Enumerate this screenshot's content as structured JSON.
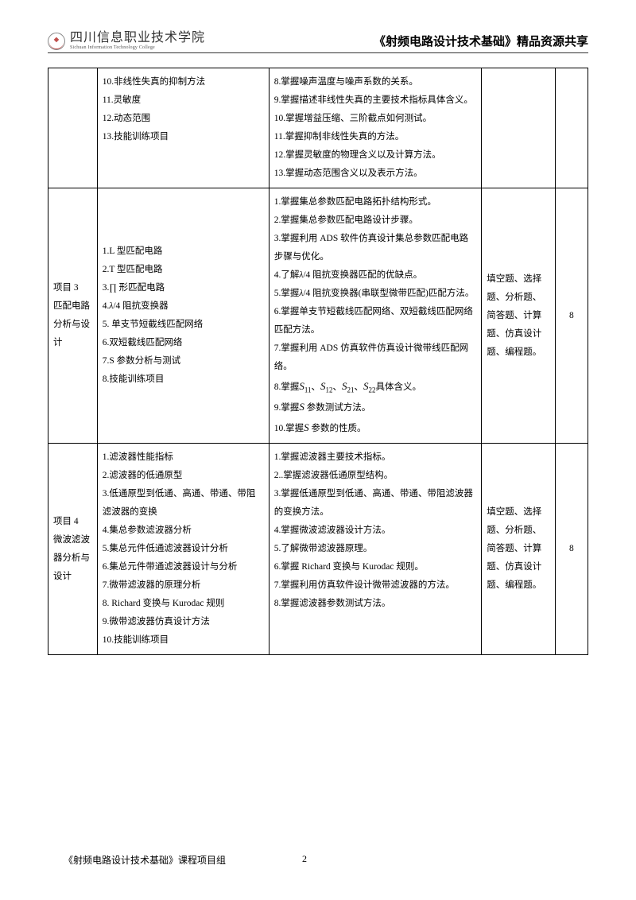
{
  "header": {
    "org_cn": "四川信息职业技术学院",
    "org_en": "Sichuan Information Technology College",
    "title": "《射频电路设计技术基础》精品资源共享"
  },
  "table": {
    "row1": {
      "col2_items": [
        "10.非线性失真的抑制方法",
        "11.灵敏度",
        "12.动态范围",
        "13.技能训练项目"
      ],
      "col3_items": [
        "8.掌握噪声温度与噪声系数的关系。",
        "9.掌握描述非线性失真的主要技术指标具体含义。",
        "10.掌握增益压缩、三阶截点如何测试。",
        "11.掌握抑制非线性失真的方法。",
        "12.掌握灵敏度的物理含义以及计算方法。",
        "13.掌握动态范围含义以及表示方法。"
      ]
    },
    "row2": {
      "col1": "项目 3\n匹配电路分析与设计",
      "col2_items": [
        "1.L 型匹配电路",
        "2.T 型匹配电路",
        "3.∏ 形匹配电路",
        "4.λ/4 阻抗变换器",
        "5. 单支节短截线匹配网络",
        "6.双短截线匹配网络",
        "7.S 参数分析与测试",
        "8.技能训练项目"
      ],
      "col3_items": [
        "1.掌握集总参数匹配电路拓扑结构形式。",
        "2.掌握集总参数匹配电路设计步骤。",
        "3.掌握利用 ADS 软件仿真设计集总参数匹配电路步骤与优化。",
        "4.了解λ/4 阻抗变换器匹配的优缺点。",
        "5.掌握λ/4 阻抗变换器(串联型微带匹配)匹配方法。",
        "6.掌握单支节短截线匹配网络、双短截线匹配网络匹配方法。",
        "7.掌握利用 ADS 仿真软件仿真设计微带线匹配网络。",
        "8.掌握S₁₁、S₁₂、S₂₁、S₂₂具体含义。",
        "9.掌握S 参数测试方法。",
        "10.掌握S 参数的性质。"
      ],
      "col4": "填空题、选择题、分析题、简答题、计算题、仿真设计题、编程题。",
      "col5": "8"
    },
    "row3": {
      "col1": "项目 4\n微波滤波器分析与设计",
      "col2_items": [
        "1.滤波器性能指标",
        "2.滤波器的低通原型",
        "3.低通原型到低通、高通、带通、带阻滤波器的变换",
        "4.集总参数滤波器分析",
        "5.集总元件低通滤波器设计分析",
        "6.集总元件带通滤波器设计与分析",
        "7.微带滤波器的原理分析",
        "8. Richard 变换与 Kurodac 规则",
        "9.微带滤波器仿真设计方法",
        "10.技能训练项目"
      ],
      "col3_items": [
        "1.掌握滤波器主要技术指标。",
        "2..掌握滤波器低通原型结构。",
        "3.掌握低通原型到低通、高通、带通、带阻滤波器的变换方法。",
        "4.掌握微波滤波器设计方法。",
        "5.了解微带滤波器原理。",
        "6.掌握 Richard 变换与 Kurodac 规则。",
        "7.掌握利用仿真软件设计微带滤波器的方法。",
        "",
        "8.掌握滤波器参数测试方法。"
      ],
      "col4": "填空题、选择题、分析题、简答题、计算题、仿真设计题、编程题。",
      "col5": "8"
    }
  },
  "footer": {
    "left": "《射频电路设计技术基础》课程项目组",
    "page": "2"
  }
}
